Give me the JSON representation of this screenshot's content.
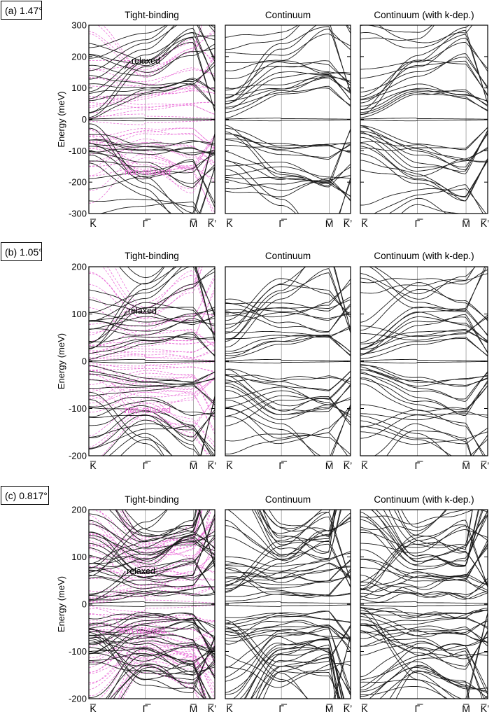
{
  "figure": {
    "colors": {
      "relaxed": "#1a1a1a",
      "non_relaxed": "#ea6fd8",
      "vline": "#9a9a9a",
      "frame": "#000000"
    },
    "ylabel": "Energy (meV)",
    "column_titles": [
      "Tight-binding",
      "Continuum",
      "Continuum (with k-dep.)"
    ],
    "k_labels": [
      "K̅",
      "Γ̅",
      "M̅",
      "K̅’"
    ],
    "annotation_relaxed": "relaxed",
    "annotation_nonrelaxed": "non-relaxed"
  },
  "chart_data": [
    {
      "type": "line",
      "panel_label": "(a) 1.47°",
      "theta_deg": 1.47,
      "ylabel": "Energy (meV)",
      "ylim": [
        -300,
        300
      ],
      "yticks": [
        -300,
        -200,
        -100,
        0,
        100,
        200,
        300
      ],
      "x_ticks": [
        "K̅",
        "Γ̅",
        "M̅",
        "K̅’"
      ],
      "subplots": [
        "Tight-binding",
        "Continuum",
        "Continuum (with k-dep.)"
      ],
      "series": [
        {
          "name": "relaxed",
          "flat_band_energies_meV": [
            1,
            -2
          ],
          "gamma_energies_meV": [
            78,
            62,
            -55,
            -70,
            250,
            230,
            -270,
            -250
          ]
        },
        {
          "name": "non-relaxed",
          "flat_band_energies_meV": [
            5,
            -5
          ],
          "gamma_energies_meV": [
            30,
            20,
            -30,
            -20
          ]
        }
      ]
    },
    {
      "type": "line",
      "panel_label": "(b) 1.05°",
      "theta_deg": 1.05,
      "ylabel": "Energy (meV)",
      "ylim": [
        -200,
        200
      ],
      "yticks": [
        -200,
        -100,
        0,
        100,
        200
      ],
      "x_ticks": [
        "K̅",
        "Γ̅",
        "M̅",
        "K̅’"
      ],
      "subplots": [
        "Tight-binding",
        "Continuum",
        "Continuum (with k-dep.)"
      ],
      "series": [
        {
          "name": "relaxed",
          "flat_band_energies_meV": [
            1,
            -1
          ],
          "gamma_energies_meV": [
            35,
            30,
            -25,
            -30,
            195,
            -195
          ]
        },
        {
          "name": "non-relaxed",
          "flat_band_energies_meV": [
            3,
            -3
          ],
          "gamma_energies_meV": [
            10,
            -8
          ]
        }
      ]
    },
    {
      "type": "line",
      "panel_label": "(c) 0.817°",
      "theta_deg": 0.817,
      "ylabel": "Energy (meV)",
      "ylim": [
        -200,
        200
      ],
      "yticks": [
        -200,
        -100,
        0,
        100,
        200
      ],
      "x_ticks": [
        "K̅",
        "Γ̅",
        "M̅",
        "K̅’"
      ],
      "subplots": [
        "Tight-binding",
        "Continuum",
        "Continuum (with k-dep.)"
      ],
      "series": [
        {
          "name": "relaxed",
          "flat_band_energies_meV": [
            2,
            -2
          ],
          "gamma_energies_meV": [
            20,
            10,
            -15,
            -20,
            130,
            -130
          ]
        },
        {
          "name": "non-relaxed",
          "flat_band_energies_meV": [
            4,
            -4
          ],
          "gamma_energies_meV": [
            20,
            -20
          ]
        }
      ]
    }
  ]
}
